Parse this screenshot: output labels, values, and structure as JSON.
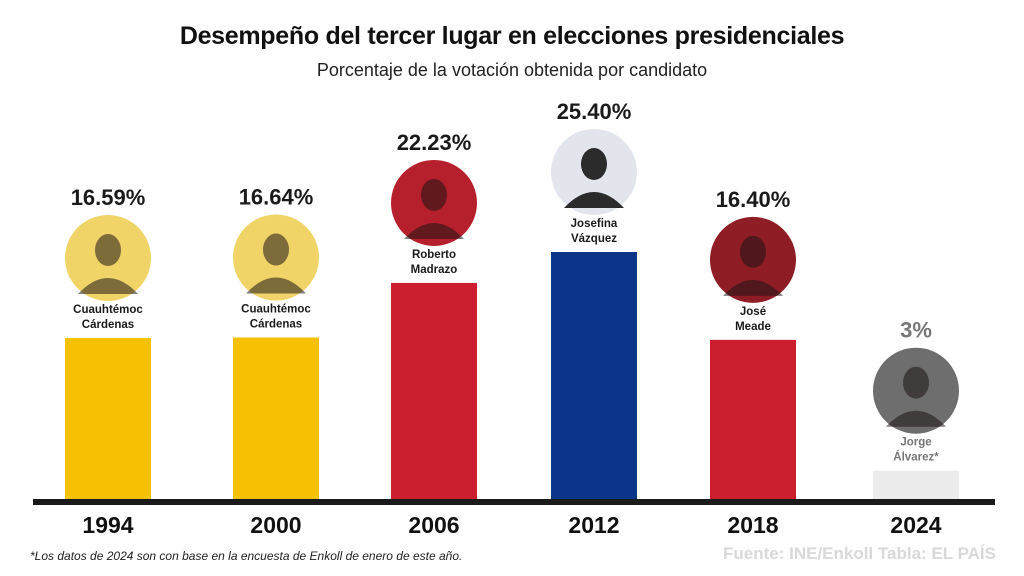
{
  "title": "Desempeño del tercer lugar en elecciones presidenciales",
  "subtitle": "Porcentaje de la votación obtenida por candidato",
  "footnote": "*Los datos de 2024 son con base en la encuesta de Enkoll de enero de este año.",
  "source": "Fuente: INE/Enkoll Tabla: EL PAÍS",
  "chart_data": {
    "type": "bar",
    "title": "Desempeño del tercer lugar en elecciones presidenciales",
    "subtitle": "Porcentaje de la votación obtenida por candidato",
    "categories": [
      "1994",
      "2000",
      "2006",
      "2012",
      "2018",
      "2024"
    ],
    "values": [
      16.59,
      16.64,
      22.23,
      25.4,
      16.4,
      3
    ],
    "value_labels": [
      "16.59%",
      "16.64%",
      "22.23%",
      "25.40%",
      "16.40%",
      "3%"
    ],
    "candidates": [
      {
        "line1": "Cuauhtémoc",
        "line2": "Cárdenas"
      },
      {
        "line1": "Cuauhtémoc",
        "line2": "Cárdenas"
      },
      {
        "line1": "Roberto",
        "line2": "Madrazo"
      },
      {
        "line1": "Josefina",
        "line2": "Vázquez"
      },
      {
        "line1": "José",
        "line2": "Meade"
      },
      {
        "line1": "Jorge",
        "line2": "Álvarez*"
      }
    ],
    "bar_colors": [
      "#f6c200",
      "#f6c200",
      "#cc1e2e",
      "#0b3588",
      "#cc1e2e",
      "#ececec"
    ],
    "photo_colors": [
      "#f1d468",
      "#f1d468",
      "#b5202c",
      "#e2e5ec",
      "#8f1d26",
      "#6e6e6e"
    ],
    "label_colors": [
      "#1a1a1a",
      "#1a1a1a",
      "#1a1a1a",
      "#1a1a1a",
      "#1a1a1a",
      "#777777"
    ],
    "xlabel": "",
    "ylabel": "",
    "ylim": [
      0,
      25.4
    ],
    "grid": false
  }
}
